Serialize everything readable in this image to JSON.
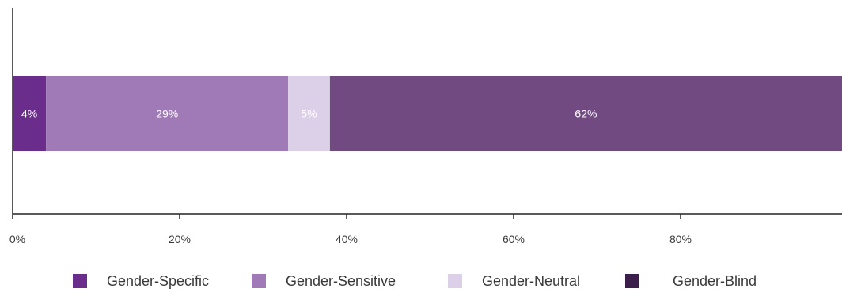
{
  "chart_data": {
    "type": "bar",
    "orientation": "horizontal",
    "stacked": true,
    "categories": [
      ""
    ],
    "series": [
      {
        "name": "Gender-Specific",
        "values": [
          4
        ],
        "color": "#6b2d8b",
        "label": "4%"
      },
      {
        "name": "Gender-Sensitive",
        "values": [
          29
        ],
        "color": "#a07ab6",
        "label": "29%"
      },
      {
        "name": "Gender-Neutral",
        "values": [
          5
        ],
        "color": "#dcd0e8",
        "label": "5%"
      },
      {
        "name": "Gender-Blind",
        "values": [
          62
        ],
        "color": "#714a82",
        "label": "62%"
      }
    ],
    "x_ticks": [
      "0%",
      "20%",
      "40%",
      "60%",
      "80%"
    ],
    "xlim": [
      0,
      100
    ],
    "grid": false,
    "legend_position": "bottom",
    "legend": [
      {
        "name": "Gender-Specific",
        "color": "#6b2d8b"
      },
      {
        "name": "Gender-Sensitive",
        "color": "#a07ab6"
      },
      {
        "name": "Gender-Neutral",
        "color": "#dcd0e8"
      },
      {
        "name": "Gender-Blind",
        "color": "#3b1f4a"
      }
    ]
  }
}
